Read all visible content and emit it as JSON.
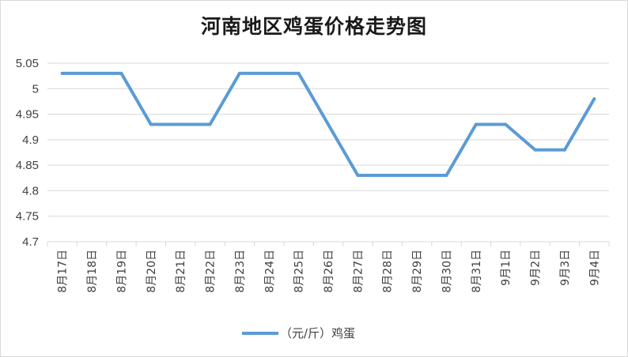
{
  "chart_data": {
    "type": "line",
    "title": "河南地区鸡蛋价格走势图",
    "categories": [
      "8月17日",
      "8月18日",
      "8月19日",
      "8月20日",
      "8月21日",
      "8月22日",
      "8月23日",
      "8月24日",
      "8月25日",
      "8月26日",
      "8月27日",
      "8月28日",
      "8月29日",
      "8月30日",
      "8月31日",
      "9月1日",
      "9月2日",
      "9月3日",
      "9月4日"
    ],
    "series": [
      {
        "name": "（元/斤）鸡蛋",
        "color": "#5b9bd5",
        "values": [
          5.03,
          5.03,
          5.03,
          4.93,
          4.93,
          4.93,
          5.03,
          5.03,
          5.03,
          4.93,
          4.83,
          4.83,
          4.83,
          4.83,
          4.93,
          4.93,
          4.88,
          4.88,
          4.98
        ]
      }
    ],
    "yticks": [
      "4.7",
      "4.75",
      "4.8",
      "4.85",
      "4.9",
      "4.95",
      "5",
      "5.05"
    ],
    "ylim": [
      4.7,
      5.05
    ],
    "grid": true,
    "legend_position": "bottom"
  }
}
